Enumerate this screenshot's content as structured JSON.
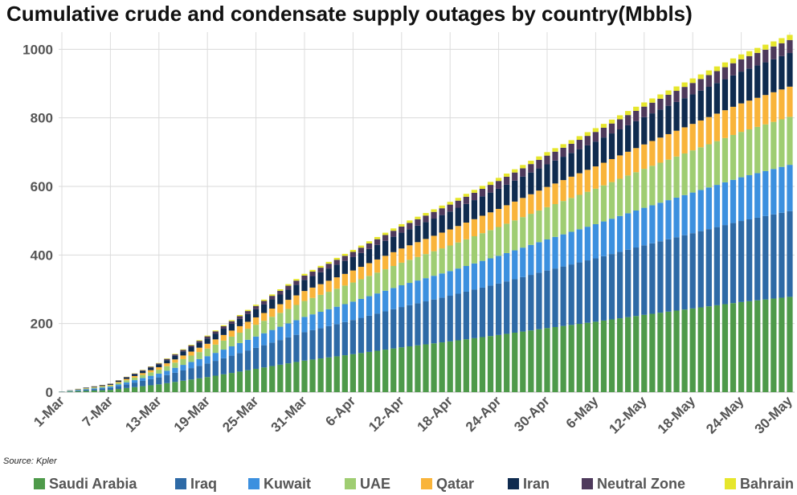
{
  "chart_data": {
    "type": "bar",
    "stacked": true,
    "title": "Cumulative crude and condensate supply outages by country(Mbbls)",
    "source": "Source: Kpler",
    "ylim": [
      0,
      1050
    ],
    "yticks": [
      0,
      200,
      400,
      600,
      800,
      1000
    ],
    "grid": true,
    "legend_position": "bottom",
    "x_tick_labels": [
      "1-Mar",
      "7-Mar",
      "13-Mar",
      "19-Mar",
      "25-Mar",
      "31-Mar",
      "6-Apr",
      "12-Apr",
      "18-Apr",
      "24-Apr",
      "30-Apr",
      "6-May",
      "12-May",
      "18-May",
      "24-May",
      "30-May"
    ],
    "x_start_label": "1-Mar",
    "num_days": 91,
    "series_totals_at_30_May": {
      "Saudi Arabia": 278,
      "Iraq": 250,
      "Kuwait": 135,
      "UAE": 140,
      "Qatar": 88,
      "Iran": 98,
      "Neutral Zone": 38,
      "Bahrain": 15
    },
    "approx_totals": [
      {
        "x": "1-Mar",
        "y": 2
      },
      {
        "x": "7-Mar",
        "y": 25
      },
      {
        "x": "13-Mar",
        "y": 85
      },
      {
        "x": "19-Mar",
        "y": 165
      },
      {
        "x": "25-Mar",
        "y": 255
      },
      {
        "x": "31-Mar",
        "y": 345
      },
      {
        "x": "6-Apr",
        "y": 415
      },
      {
        "x": "12-Apr",
        "y": 490
      },
      {
        "x": "18-Apr",
        "y": 555
      },
      {
        "x": "24-Apr",
        "y": 625
      },
      {
        "x": "30-Apr",
        "y": 700
      },
      {
        "x": "6-May",
        "y": 770
      },
      {
        "x": "12-May",
        "y": 845
      },
      {
        "x": "18-May",
        "y": 915
      },
      {
        "x": "24-May",
        "y": 985
      },
      {
        "x": "30-May",
        "y": 1042
      }
    ],
    "series": [
      {
        "name": "Saudi Arabia",
        "color": "#4e9a4a"
      },
      {
        "name": "Iraq",
        "color": "#2e6aa6"
      },
      {
        "name": "Kuwait",
        "color": "#3c90df"
      },
      {
        "name": "UAE",
        "color": "#9fcd72"
      },
      {
        "name": "Qatar",
        "color": "#f9b43a"
      },
      {
        "name": "Iran",
        "color": "#0f2b4f"
      },
      {
        "name": "Neutral Zone",
        "color": "#4e3a5c"
      },
      {
        "name": "Bahrain",
        "color": "#e6e62c"
      }
    ]
  }
}
